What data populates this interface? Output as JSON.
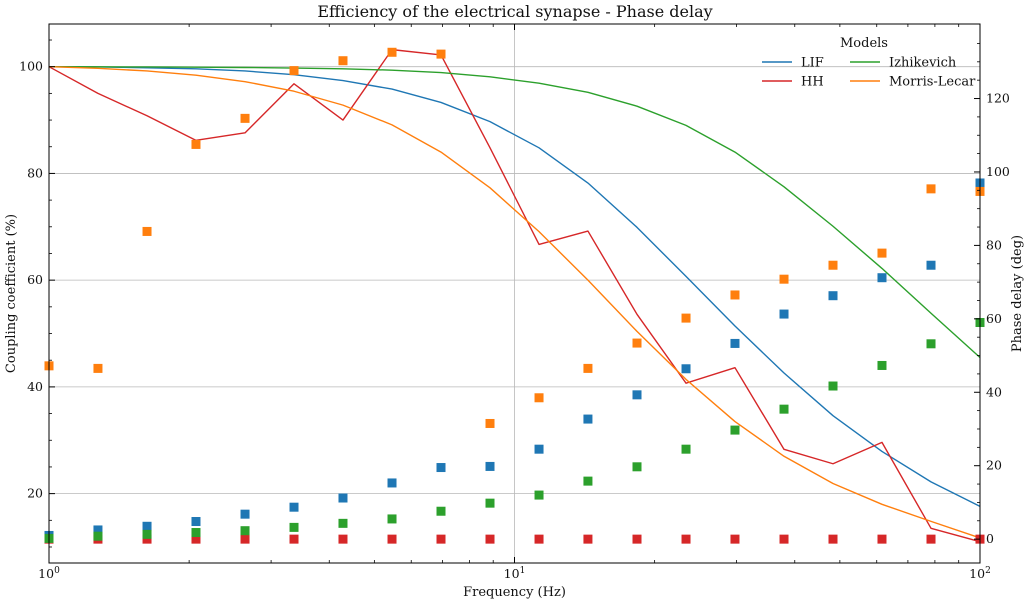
{
  "chart_data": {
    "type": "line",
    "title": "Efficiency of the electrical synapse - Phase delay",
    "xlabel": "Frequency (Hz)",
    "ylabel": "Coupling coefficient (%)",
    "y2label": "Phase delay (deg)",
    "xscale": "log",
    "xlim": [
      1,
      100
    ],
    "ylim": [
      7,
      108
    ],
    "y2lim": [
      -6.5,
      140.3
    ],
    "grid": true,
    "x_ticks": [
      {
        "value": 1,
        "label": "10",
        "sup": "0"
      },
      {
        "value": 10,
        "label": "10",
        "sup": "1"
      },
      {
        "value": 100,
        "label": "10",
        "sup": "2"
      }
    ],
    "y_ticks": [
      20,
      40,
      60,
      80,
      100
    ],
    "y2_ticks": [
      0,
      20,
      40,
      60,
      80,
      100,
      120
    ],
    "legend": {
      "title": "Models",
      "position": "top-right"
    },
    "x": [
      1.0,
      1.274,
      1.624,
      2.069,
      2.637,
      3.36,
      4.281,
      5.456,
      6.952,
      8.859,
      11.29,
      14.38,
      18.33,
      23.36,
      29.76,
      37.93,
      48.33,
      61.58,
      78.48,
      100.0
    ],
    "series": [
      {
        "name": "LIF",
        "color": "#1f77b4",
        "coupling": [
          100,
          99.95,
          99.8,
          99.6,
          99.2,
          98.5,
          97.4,
          95.8,
          93.3,
          89.7,
          84.8,
          78.2,
          69.9,
          60.7,
          51.4,
          42.6,
          34.6,
          27.9,
          22.2,
          17.6
        ],
        "phase": [
          1.0,
          2.5,
          3.5,
          4.8,
          6.8,
          8.7,
          11.2,
          15.3,
          19.5,
          19.8,
          24.5,
          32.7,
          39.3,
          46.4,
          53.3,
          61.3,
          66.3,
          71.2,
          74.6,
          97.0
        ]
      },
      {
        "name": "HH",
        "color": "#d62728",
        "coupling": [
          100,
          95.0,
          90.8,
          86.2,
          87.6,
          96.8,
          90.0,
          103.2,
          102.2,
          84.8,
          66.7,
          69.2,
          53.6,
          40.7,
          43.6,
          28.3,
          25.6,
          29.6,
          13.5,
          11.0
        ],
        "phase": [
          0,
          0,
          0,
          0,
          0,
          0,
          0,
          0,
          0,
          0,
          0,
          0,
          0,
          0,
          0,
          0,
          0,
          0,
          0,
          0
        ]
      },
      {
        "name": "Izhikevich",
        "color": "#2ca02c",
        "coupling": [
          100,
          99.98,
          99.95,
          99.9,
          99.85,
          99.75,
          99.6,
          99.35,
          98.9,
          98.1,
          96.9,
          95.2,
          92.6,
          89.0,
          84.0,
          77.5,
          70.1,
          62.2,
          53.8,
          45.5
        ],
        "phase": [
          0.2,
          0.8,
          1.3,
          1.8,
          2.3,
          3.2,
          4.3,
          5.5,
          7.6,
          9.8,
          12.0,
          15.8,
          19.7,
          24.5,
          29.7,
          35.4,
          41.7,
          47.3,
          53.2,
          59.0
        ]
      },
      {
        "name": "Morris-Lecar",
        "color": "#ff7f0e",
        "coupling": [
          100,
          99.7,
          99.2,
          98.4,
          97.2,
          95.4,
          92.8,
          89.1,
          84.0,
          77.3,
          69.1,
          60.0,
          50.4,
          41.4,
          33.5,
          27.0,
          21.9,
          18.0,
          14.8,
          11.7
        ],
        "phase": [
          47.2,
          46.5,
          83.8,
          107.5,
          114.6,
          127.6,
          130.3,
          132.6,
          132.1,
          31.5,
          38.5,
          46.5,
          53.4,
          60.2,
          66.5,
          70.8,
          74.6,
          77.9,
          95.4,
          94.7
        ]
      }
    ]
  }
}
